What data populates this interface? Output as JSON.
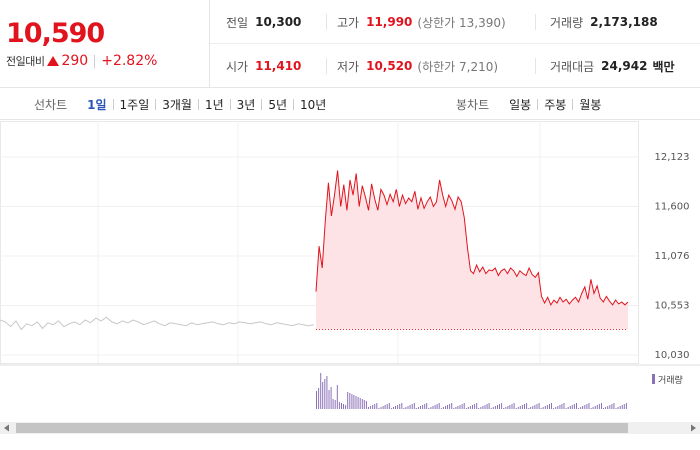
{
  "quote": {
    "price": "10,590",
    "change_label": "전일대비",
    "change": "290",
    "change_pct": "+2.82%",
    "prev_close_label": "전일",
    "prev_close": "10,300",
    "open_label": "시가",
    "open": "11,410",
    "high_label": "고가",
    "high": "11,990",
    "upper_limit_label": "(상한가 13,390)",
    "low_label": "저가",
    "low": "10,520",
    "lower_limit_label": "(하한가 7,210)",
    "volume_label": "거래량",
    "volume": "2,173,188",
    "amount_label": "거래대금",
    "amount": "24,942",
    "amount_unit": "백만"
  },
  "line_tabs": {
    "label": "선차트",
    "items": [
      "1일",
      "1주일",
      "3개월",
      "1년",
      "3년",
      "5년",
      "10년"
    ],
    "active": 0
  },
  "candle_tabs": {
    "label": "봉차트",
    "items": [
      "일봉",
      "주봉",
      "월봉"
    ]
  },
  "chart_data": {
    "type": "line",
    "y_ticks": [
      "12,123",
      "11,600",
      "11,076",
      "10,553",
      "10,030"
    ],
    "ylim": [
      10030,
      12123
    ],
    "reference_price": 10300,
    "volume_legend": "거래량",
    "colors": {
      "line": "#e1141e",
      "fill": "#fde3e5",
      "prev": "#c8c8c8",
      "volume": "#8a72b8"
    },
    "prev_day_series": [
      10400,
      10380,
      10330,
      10390,
      10300,
      10360,
      10340,
      10380,
      10310,
      10370,
      10350,
      10390,
      10330,
      10360,
      10380,
      10350,
      10400,
      10370,
      10420,
      10390,
      10430,
      10380,
      10360,
      10390,
      10370,
      10400,
      10380,
      10350,
      10370,
      10390,
      10360,
      10340,
      10370,
      10360,
      10350,
      10340,
      10370,
      10350,
      10360,
      10370,
      10380,
      10360,
      10350,
      10370,
      10360,
      10380,
      10370,
      10360,
      10370,
      10380,
      10360,
      10350,
      10370,
      10360,
      10350,
      10340,
      10360,
      10350,
      10340,
      10350
    ],
    "series": [
      10700,
      11180,
      10950,
      11450,
      11850,
      11500,
      11720,
      11980,
      11600,
      11830,
      11560,
      11880,
      11720,
      11950,
      11600,
      11820,
      11700,
      11560,
      11840,
      11680,
      11560,
      11780,
      11720,
      11620,
      11730,
      11650,
      11780,
      11600,
      11720,
      11630,
      11690,
      11650,
      11760,
      11570,
      11690,
      11580,
      11650,
      11700,
      11600,
      11650,
      11880,
      11720,
      11600,
      11720,
      11660,
      11570,
      11700,
      11650,
      11480,
      11170,
      10920,
      10890,
      10980,
      10910,
      10960,
      10890,
      10930,
      10920,
      10950,
      10870,
      10920,
      10940,
      10890,
      10950,
      10920,
      10860,
      10920,
      10890,
      10870,
      10950,
      10880,
      10850,
      10900,
      10650,
      10580,
      10640,
      10560,
      10610,
      10580,
      10640,
      10590,
      10620,
      10570,
      10610,
      10640,
      10590,
      10680,
      10750,
      10620,
      10830,
      10680,
      10760,
      10630,
      10590,
      10650,
      10600,
      10560,
      10610,
      10570,
      10590,
      10560,
      10590
    ]
  }
}
